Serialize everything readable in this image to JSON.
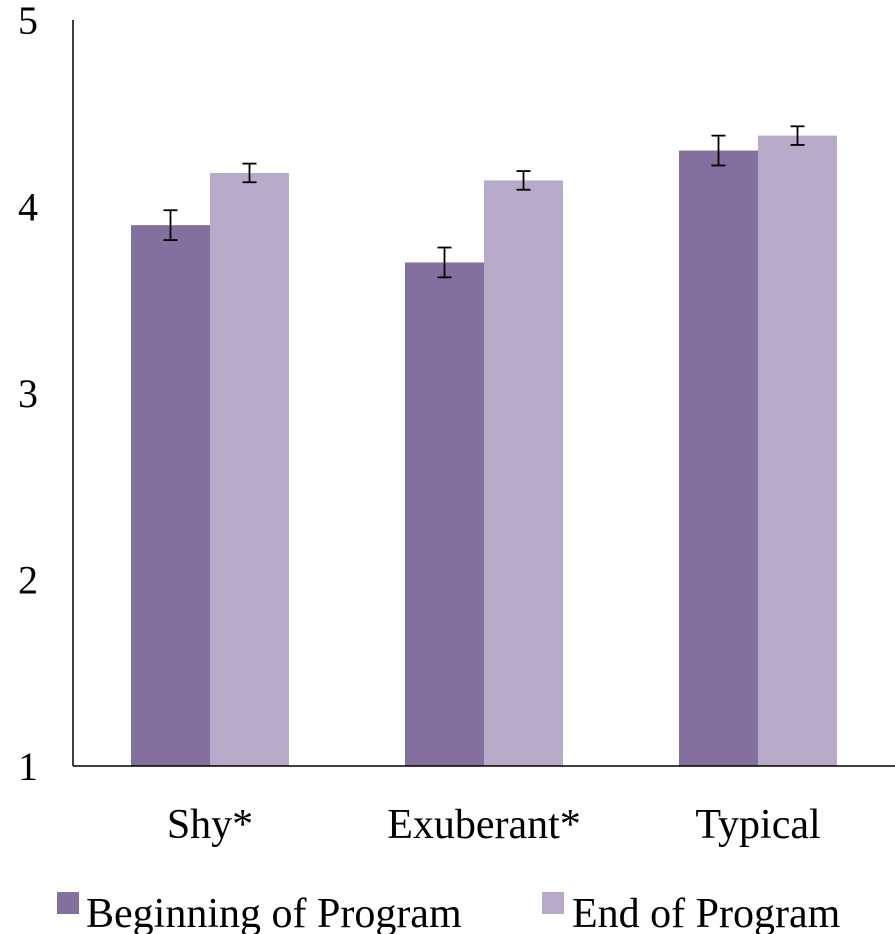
{
  "chart_data": {
    "type": "bar",
    "title": "",
    "xlabel": "",
    "ylabel": "",
    "categories": [
      "Shy*",
      "Exuberant*",
      "Typical"
    ],
    "ylim": [
      1,
      5
    ],
    "yticks": [
      "1",
      "2",
      "3",
      "4",
      "5"
    ],
    "grid": false,
    "legend_position": "bottom",
    "series": [
      {
        "name": "Beginning of Program",
        "color": "#84709f",
        "values": [
          3.9,
          3.7,
          4.3
        ],
        "errors": [
          0.08,
          0.08,
          0.08
        ]
      },
      {
        "name": "End of Program",
        "color": "#b8abc9",
        "values": [
          4.18,
          4.14,
          4.38
        ],
        "errors": [
          0.05,
          0.05,
          0.05
        ]
      }
    ]
  }
}
